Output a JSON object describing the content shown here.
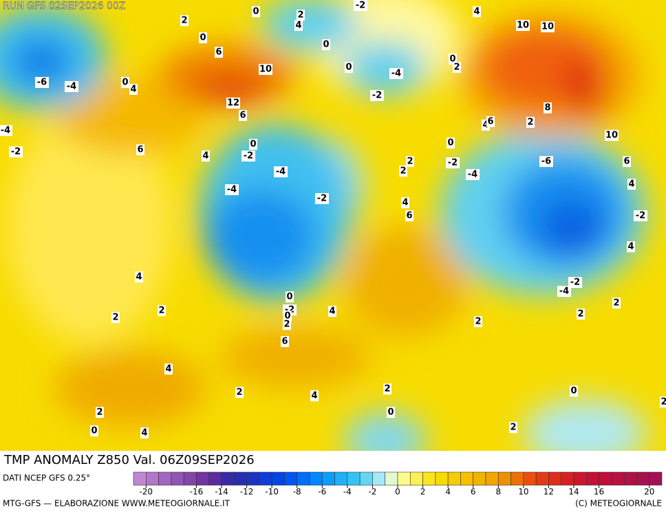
{
  "header": {
    "run": "RUN GFS 02SEP2026 00Z"
  },
  "map": {
    "title": "TMP ANOMALY Z850 Val. 06Z09SEP2026",
    "contour_labels": [
      0,
      2,
      -2,
      4,
      2,
      4,
      0,
      6,
      0,
      10,
      10,
      0,
      2,
      0,
      -4,
      10,
      -6,
      -4,
      0,
      4,
      12,
      -2,
      6,
      8,
      2,
      4,
      6,
      -4,
      0,
      0,
      10,
      -2,
      6,
      4,
      -2,
      2,
      -2,
      -6,
      6,
      -4,
      2,
      -4,
      4,
      -4,
      -2,
      4,
      6,
      -2,
      4,
      4,
      -2,
      0,
      -4,
      2,
      -2,
      2,
      0,
      4,
      2,
      2,
      2,
      2,
      6,
      4,
      2,
      2,
      0,
      4,
      2,
      2,
      0,
      0,
      4,
      2
    ]
  },
  "colorbar": {
    "range": [
      -21,
      21
    ],
    "ticks": [
      -20,
      -16,
      -14,
      -12,
      -10,
      -8,
      -6,
      -4,
      -2,
      0,
      2,
      4,
      6,
      8,
      10,
      12,
      14,
      16,
      20
    ],
    "stops": [
      [
        -21,
        "#c890d8"
      ],
      [
        -15,
        "#6a2c9a"
      ],
      [
        -13,
        "#2a2aa8"
      ],
      [
        -9,
        "#0048f0"
      ],
      [
        -6,
        "#0094ff"
      ],
      [
        -3,
        "#40ccf0"
      ],
      [
        -1,
        "#c8f2f8"
      ],
      [
        0,
        "#ffffa8"
      ],
      [
        3,
        "#f8e000"
      ],
      [
        8,
        "#f0a000"
      ],
      [
        11,
        "#e84010"
      ],
      [
        15,
        "#c81030"
      ],
      [
        21,
        "#a01058"
      ]
    ]
  },
  "footer": {
    "source": "DATI NCEP GFS 0.25°",
    "credit": "MTG-GFS — ELABORAZIONE WWW.METEOGIORNALE.IT",
    "copyright": "(C) METEOGIORNALE"
  }
}
